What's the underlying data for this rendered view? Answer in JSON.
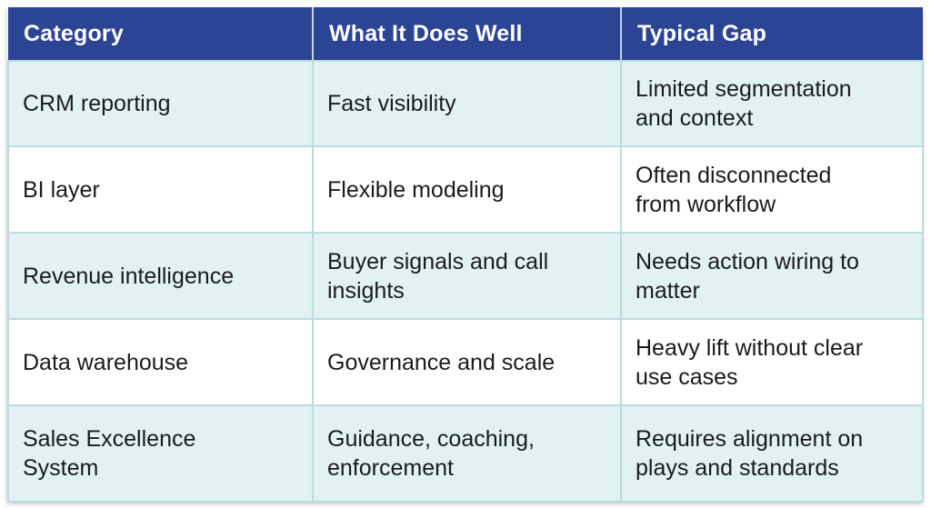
{
  "table": {
    "columns": [
      "Category",
      "What It Does Well",
      "Typical Gap"
    ],
    "rows": [
      {
        "category": "CRM reporting",
        "does_well": "Fast visibility",
        "gap": "Limited segmentation\nand context"
      },
      {
        "category": "BI layer",
        "does_well": "Flexible modeling",
        "gap": "Often disconnected\nfrom workflow"
      },
      {
        "category": "Revenue intelligence",
        "does_well": "Buyer signals and call\ninsights",
        "gap": "Needs action wiring to\nmatter"
      },
      {
        "category": "Data warehouse",
        "does_well": "Governance and scale",
        "gap": "Heavy lift without clear\nuse cases"
      },
      {
        "category": "Sales Excellence\nSystem",
        "does_well": "Guidance, coaching,\nenforcement",
        "gap": "Requires alignment on\nplays and standards"
      }
    ],
    "colors": {
      "header_bg": "#2b4494",
      "header_text": "#ffffff",
      "row_teal": "#e2f2f2",
      "row_white": "#ffffff",
      "border": "#b9dcdc",
      "body_text": "#1b1b1b"
    }
  }
}
